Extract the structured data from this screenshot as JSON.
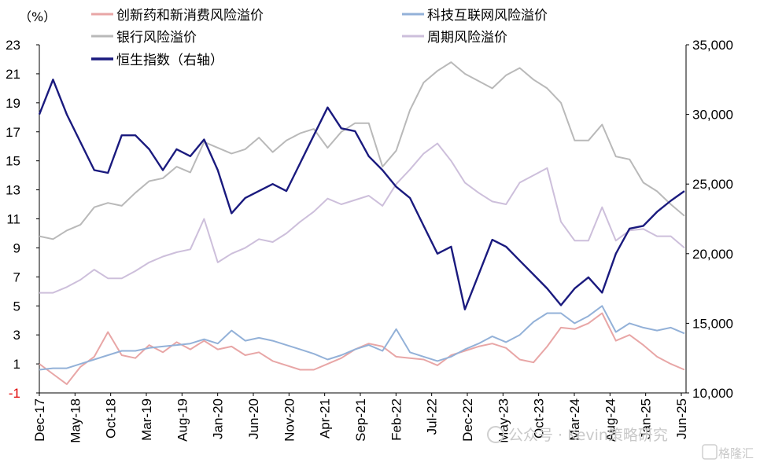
{
  "chart_data": {
    "type": "line",
    "unit_label": "（%）",
    "legend_position": "top-left",
    "grid": false,
    "y_left": {
      "ticks": [
        "23",
        "21",
        "19",
        "17",
        "15",
        "13",
        "11",
        "9",
        "7",
        "5",
        "3",
        "1",
        "-1"
      ],
      "ylim": [
        -1,
        23
      ]
    },
    "y_right": {
      "ticks": [
        "35,000",
        "30,000",
        "25,000",
        "20,000",
        "15,000",
        "10,000"
      ],
      "ylim": [
        10000,
        35000
      ]
    },
    "x_ticks": [
      "Dec-17",
      "May-18",
      "Oct-18",
      "Mar-19",
      "Aug-19",
      "Jan-20",
      "Jun-20",
      "Nov-20",
      "Apr-21",
      "Sep-21",
      "Feb-22",
      "Jul-22",
      "Dec-22",
      "May-23",
      "Oct-23",
      "Mar-24",
      "Aug-24",
      "Jan-25",
      "Jun-25"
    ],
    "series": [
      {
        "name": "创新药和新消费风险溢价",
        "axis": "left",
        "color": "#e8a6a6",
        "values": [
          1.0,
          0.3,
          -0.4,
          0.8,
          1.5,
          3.2,
          1.6,
          1.4,
          2.3,
          1.8,
          2.5,
          2.0,
          2.6,
          2.0,
          2.2,
          1.6,
          1.8,
          1.2,
          0.9,
          0.6,
          0.6,
          1.0,
          1.4,
          2.0,
          2.4,
          2.2,
          1.5,
          1.4,
          1.3,
          0.9,
          1.6,
          1.9,
          2.2,
          2.4,
          2.1,
          1.3,
          1.1,
          2.2,
          3.5,
          3.4,
          3.8,
          4.5,
          2.6,
          3.0,
          2.3,
          1.5,
          1.0,
          0.6
        ]
      },
      {
        "name": "科技互联网风险溢价",
        "axis": "left",
        "color": "#93b1d8",
        "values": [
          0.6,
          0.7,
          0.7,
          1.0,
          1.3,
          1.6,
          1.9,
          1.9,
          2.1,
          2.2,
          2.3,
          2.4,
          2.7,
          2.4,
          3.3,
          2.6,
          2.8,
          2.6,
          2.3,
          2.0,
          1.7,
          1.3,
          1.6,
          2.0,
          2.3,
          1.9,
          3.4,
          1.8,
          1.5,
          1.2,
          1.5,
          2.0,
          2.4,
          2.9,
          2.5,
          3.0,
          3.9,
          4.5,
          4.5,
          3.8,
          4.3,
          5.0,
          3.2,
          3.8,
          3.5,
          3.3,
          3.5,
          3.1
        ]
      },
      {
        "name": "银行风险溢价",
        "axis": "left",
        "color": "#b9b9b9",
        "values": [
          9.8,
          9.6,
          10.2,
          10.6,
          11.8,
          12.1,
          11.9,
          12.8,
          13.6,
          13.8,
          14.6,
          14.2,
          16.3,
          15.9,
          15.5,
          15.8,
          16.6,
          15.6,
          16.4,
          16.9,
          17.2,
          15.9,
          17.0,
          17.6,
          17.6,
          14.6,
          15.7,
          18.5,
          20.4,
          21.2,
          21.8,
          21.0,
          20.5,
          20.0,
          20.9,
          21.4,
          20.6,
          20.0,
          19.0,
          16.4,
          16.4,
          17.5,
          15.3,
          15.1,
          13.5,
          12.9,
          12.0,
          11.2
        ]
      },
      {
        "name": "周期风险溢价",
        "axis": "left",
        "color": "#cdbfdb",
        "values": [
          5.9,
          5.9,
          6.3,
          6.8,
          7.5,
          6.9,
          6.9,
          7.4,
          8.0,
          8.4,
          8.7,
          8.9,
          11.0,
          8.0,
          8.6,
          9.0,
          9.6,
          9.4,
          10.0,
          10.8,
          11.5,
          12.4,
          12.0,
          12.3,
          12.6,
          11.9,
          13.4,
          14.4,
          15.5,
          16.2,
          15.0,
          13.5,
          12.8,
          12.2,
          12.0,
          13.5,
          14.0,
          14.5,
          10.8,
          9.5,
          9.5,
          11.8,
          9.5,
          10.2,
          10.3,
          9.8,
          9.8,
          9.0
        ]
      },
      {
        "name": "恒生指数（右轴）",
        "axis": "right",
        "color": "#1a1a7e",
        "values": [
          30000,
          32500,
          30000,
          28000,
          26000,
          25800,
          28500,
          28500,
          27500,
          26000,
          27500,
          27000,
          28200,
          26000,
          22900,
          24000,
          24500,
          25000,
          24500,
          26500,
          28500,
          30500,
          29000,
          28800,
          27000,
          26000,
          24800,
          24000,
          22000,
          20000,
          20500,
          16000,
          18500,
          21000,
          20500,
          19500,
          18500,
          17500,
          16300,
          17500,
          18300,
          17200,
          20000,
          21800,
          22000,
          23000,
          23800,
          24500
        ]
      }
    ]
  },
  "watermark": {
    "text_main": "公众号 · Kevin策略研究",
    "text_brand": "格隆汇"
  }
}
